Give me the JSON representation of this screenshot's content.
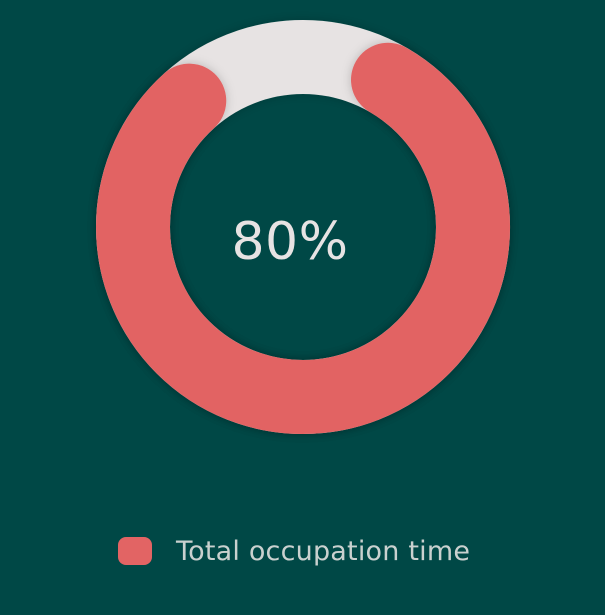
{
  "colors": {
    "background": "#004846",
    "accent": "#e26464",
    "track": "#e7e3e3",
    "center_text": "#e7e3e3",
    "legend_text": "#c9d1cf"
  },
  "chart_data": {
    "type": "donut",
    "value_percent": 80,
    "remaining_percent": 20,
    "center_label": "80%",
    "series": [
      {
        "name": "Total occupation time",
        "value": 80
      }
    ],
    "legend": {
      "placement": "bottom",
      "items": [
        {
          "label": "Total occupation time",
          "color": "#e26464"
        }
      ]
    }
  }
}
